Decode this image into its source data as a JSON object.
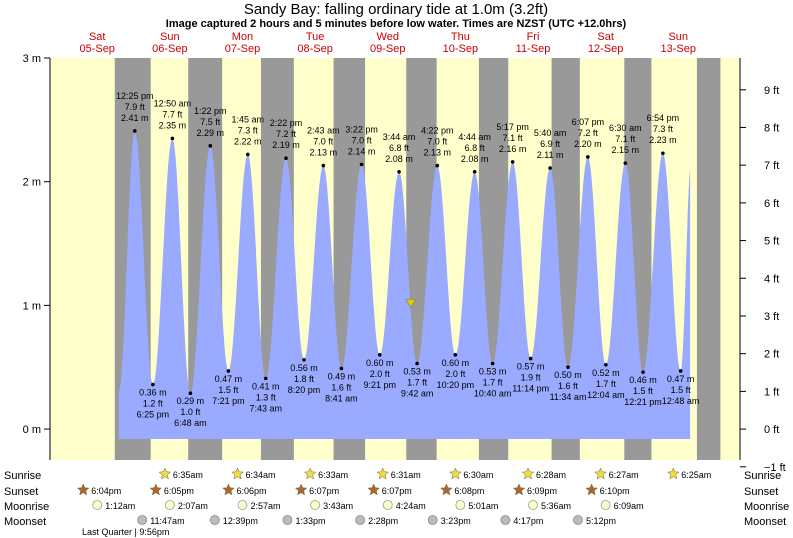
{
  "title": "Sandy Bay: falling  ordinary tide at 1.0m (3.2ft)",
  "subtitle": "Image captured 2 hours and 5 minutes before low water. Times are NZST (UTC +12.0hrs)",
  "colors": {
    "day_bg": "#ffffcc",
    "night_bg": "#999999",
    "tide_fill": "#99aaff",
    "day_label": "#cc0000",
    "current_marker": "#ddcc00"
  },
  "chart_data": {
    "type": "area",
    "title": "Sandy Bay: falling  ordinary tide at 1.0m (3.2ft)",
    "subtitle": "Image captured 2 hours and 5 minutes before low water. Times are NZST (UTC +12.0hrs)",
    "x_unit": "days from Sat 05-Sep 00:00 NZST",
    "x_range": [
      -0.65,
      8.85
    ],
    "y_left": {
      "range": [
        -0.25,
        3.0
      ],
      "ticks": [
        0,
        1,
        2,
        3
      ],
      "tick_labels": [
        "0 m",
        "1 m",
        "2 m",
        "3 m"
      ]
    },
    "y_right": {
      "ticks": [
        -1,
        0,
        1,
        2,
        3,
        4,
        5,
        6,
        7,
        8,
        9
      ],
      "tick_labels": [
        "−1 ft",
        "0 ft",
        "1 ft",
        "2 ft",
        "3 ft",
        "4 ft",
        "5 ft",
        "6 ft",
        "7 ft",
        "8 ft",
        "9 ft"
      ]
    },
    "days": [
      {
        "dow": "Sat",
        "date": "05-Sep",
        "x": 0
      },
      {
        "dow": "Sun",
        "date": "06-Sep",
        "x": 1
      },
      {
        "dow": "Mon",
        "date": "07-Sep",
        "x": 2
      },
      {
        "dow": "Tue",
        "date": "08-Sep",
        "x": 3
      },
      {
        "dow": "Wed",
        "date": "09-Sep",
        "x": 4
      },
      {
        "dow": "Thu",
        "date": "10-Sep",
        "x": 5
      },
      {
        "dow": "Fri",
        "date": "11-Sep",
        "x": 6
      },
      {
        "dow": "Sat",
        "date": "12-Sep",
        "x": 7
      },
      {
        "dow": "Sun",
        "date": "13-Sep",
        "x": 8
      }
    ],
    "night_bands": [
      [
        0.242,
        0.736
      ],
      [
        1.253,
        1.72
      ],
      [
        2.254,
        2.707
      ],
      [
        3.254,
        3.688
      ],
      [
        4.255,
        4.673
      ],
      [
        5.255,
        5.659
      ],
      [
        6.256,
        5.645
      ],
      [
        7.257,
        7.631
      ],
      [
        8.257,
        8.58
      ]
    ],
    "tides": [
      {
        "t": 0.517,
        "m": 2.41,
        "time": "12:25 pm",
        "ft": "7.9 ft",
        "h": "2.41 m",
        "type": "high"
      },
      {
        "t": 0.767,
        "m": 0.36,
        "time": "6:25 pm",
        "ft": "1.2 ft",
        "h": "0.36 m",
        "type": "low"
      },
      {
        "t": 1.035,
        "m": 2.35,
        "time": "12:50 am",
        "ft": "7.7 ft",
        "h": "2.35 m",
        "type": "high"
      },
      {
        "t": 1.283,
        "m": 0.29,
        "time": "6:48 am",
        "ft": "1.0 ft",
        "h": "0.29 m",
        "type": "low"
      },
      {
        "t": 1.557,
        "m": 2.29,
        "time": "1:22 pm",
        "ft": "7.5 ft",
        "h": "2.29 m",
        "type": "high"
      },
      {
        "t": 1.806,
        "m": 0.47,
        "time": "7:21 pm",
        "ft": "1.5 ft",
        "h": "0.47 m",
        "type": "low"
      },
      {
        "t": 2.073,
        "m": 2.22,
        "time": "1:45 am",
        "ft": "7.3 ft",
        "h": "2.22 m",
        "type": "high"
      },
      {
        "t": 2.32,
        "m": 0.41,
        "time": "7:43 am",
        "ft": "1.3 ft",
        "h": "0.41 m",
        "type": "low"
      },
      {
        "t": 2.599,
        "m": 2.19,
        "time": "2:22 pm",
        "ft": "7.2 ft",
        "h": "2.19 m",
        "type": "high"
      },
      {
        "t": 2.847,
        "m": 0.56,
        "time": "8:20 pm",
        "ft": "1.8 ft",
        "h": "0.56 m",
        "type": "low"
      },
      {
        "t": 3.113,
        "m": 2.13,
        "time": "2:43 am",
        "ft": "7.0 ft",
        "h": "2.13 m",
        "type": "high"
      },
      {
        "t": 3.362,
        "m": 0.49,
        "time": "8:41 am",
        "ft": "1.6 ft",
        "h": "0.49 m",
        "type": "low"
      },
      {
        "t": 3.64,
        "m": 2.14,
        "time": "3:22 pm",
        "ft": "7.0 ft",
        "h": "2.14 m",
        "type": "high"
      },
      {
        "t": 3.89,
        "m": 0.6,
        "time": "9:21 pm",
        "ft": "2.0 ft",
        "h": "0.60 m",
        "type": "low"
      },
      {
        "t": 4.156,
        "m": 2.08,
        "time": "3:44 am",
        "ft": "6.8 ft",
        "h": "2.08 m",
        "type": "high"
      },
      {
        "t": 4.404,
        "m": 0.53,
        "time": "9:42 am",
        "ft": "1.7 ft",
        "h": "0.53 m",
        "type": "low"
      },
      {
        "t": 4.682,
        "m": 2.13,
        "time": "4:22 pm",
        "ft": "7.0 ft",
        "h": "2.13 m",
        "type": "high"
      },
      {
        "t": 4.931,
        "m": 0.6,
        "time": "10:20 pm",
        "ft": "2.0 ft",
        "h": "0.60 m",
        "type": "low"
      },
      {
        "t": 5.197,
        "m": 2.08,
        "time": "4:44 am",
        "ft": "6.8 ft",
        "h": "2.08 m",
        "type": "high"
      },
      {
        "t": 5.444,
        "m": 0.53,
        "time": "10:40 am",
        "ft": "1.7 ft",
        "h": "0.53 m",
        "type": "low"
      },
      {
        "t": 5.72,
        "m": 2.16,
        "time": "5:17 pm",
        "ft": "7.1 ft",
        "h": "2.16 m",
        "type": "high"
      },
      {
        "t": 5.968,
        "m": 0.57,
        "time": "11:14 pm",
        "ft": "1.9 ft",
        "h": "0.57 m",
        "type": "low"
      },
      {
        "t": 6.236,
        "m": 2.11,
        "time": "5:40 am",
        "ft": "6.9 ft",
        "h": "2.11 m",
        "type": "high"
      },
      {
        "t": 6.482,
        "m": 0.5,
        "time": "11:34 am",
        "ft": "1.6 ft",
        "h": "0.50 m",
        "type": "low"
      },
      {
        "t": 6.755,
        "m": 2.2,
        "time": "6:07 pm",
        "ft": "7.2 ft",
        "h": "2.20 m",
        "type": "high"
      },
      {
        "t": 7.003,
        "m": 0.52,
        "time": "12:04 am",
        "ft": "1.7 ft",
        "h": "0.52 m",
        "type": "low"
      },
      {
        "t": 7.271,
        "m": 2.15,
        "time": "6:30 am",
        "ft": "7.1 ft",
        "h": "2.15 m",
        "type": "high"
      },
      {
        "t": 7.515,
        "m": 0.46,
        "time": "12:21 pm",
        "ft": "1.5 ft",
        "h": "0.46 m",
        "type": "low"
      },
      {
        "t": 7.788,
        "m": 2.23,
        "time": "6:54 pm",
        "ft": "7.3 ft",
        "h": "2.23 m",
        "type": "high"
      },
      {
        "t": 8.033,
        "m": 0.47,
        "time": "12:48 am",
        "ft": "1.5 ft",
        "h": "0.47 m",
        "type": "low"
      }
    ],
    "current": {
      "t": 4.317,
      "m": 1.0
    },
    "sunrise": [
      {
        "x": 1,
        "label": "6:35am"
      },
      {
        "x": 2,
        "label": "6:34am"
      },
      {
        "x": 3,
        "label": "6:33am"
      },
      {
        "x": 4,
        "label": "6:31am"
      },
      {
        "x": 5,
        "label": "6:30am"
      },
      {
        "x": 6,
        "label": "6:28am"
      },
      {
        "x": 7,
        "label": "6:27am"
      },
      {
        "x": 8,
        "label": "6:25am"
      }
    ],
    "sunset": [
      {
        "x": 0,
        "label": "6:04pm"
      },
      {
        "x": 1,
        "label": "6:05pm"
      },
      {
        "x": 2,
        "label": "6:06pm"
      },
      {
        "x": 3,
        "label": "6:07pm"
      },
      {
        "x": 4,
        "label": "6:07pm"
      },
      {
        "x": 5,
        "label": "6:08pm"
      },
      {
        "x": 6,
        "label": "6:09pm"
      },
      {
        "x": 7,
        "label": "6:10pm"
      }
    ],
    "moonrise": [
      {
        "x": 0,
        "label": "1:12am"
      },
      {
        "x": 1,
        "label": "2:07am"
      },
      {
        "x": 2,
        "label": "2:57am"
      },
      {
        "x": 3,
        "label": "3:43am"
      },
      {
        "x": 4,
        "label": "4:24am"
      },
      {
        "x": 5,
        "label": "5:01am"
      },
      {
        "x": 6,
        "label": "5:36am"
      },
      {
        "x": 7,
        "label": "6:09am"
      }
    ],
    "moonset": [
      {
        "x": 0,
        "label": "11:47am"
      },
      {
        "x": 1,
        "label": "12:39pm"
      },
      {
        "x": 2,
        "label": "1:33pm"
      },
      {
        "x": 3,
        "label": "2:28pm"
      },
      {
        "x": 4,
        "label": "3:23pm"
      },
      {
        "x": 5,
        "label": "4:17pm"
      },
      {
        "x": 6,
        "label": "5:12pm"
      }
    ]
  },
  "rows": {
    "sunrise": "Sunrise",
    "sunset": "Sunset",
    "moonrise": "Moonrise",
    "moonset": "Moonset"
  },
  "moon_phase": "Last Quarter | 9:56pm"
}
